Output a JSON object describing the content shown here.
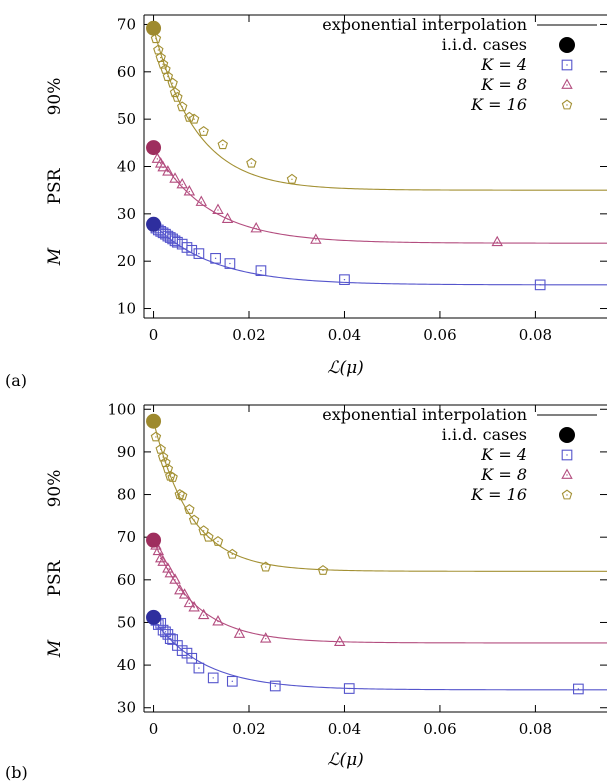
{
  "chart_data": [
    {
      "panel_label": "(a)",
      "type": "scatter",
      "xlabel": "ℒ(μ)",
      "ylabel": [
        "M",
        "PSR",
        "90%"
      ],
      "xlim": [
        -0.002,
        0.095
      ],
      "ylim": [
        8,
        72
      ],
      "xticks": [
        "0",
        "0.02",
        "0.04",
        "0.06",
        "0.08"
      ],
      "xtick_values": [
        0,
        0.02,
        0.04,
        0.06,
        0.08
      ],
      "yticks": [
        "10",
        "20",
        "30",
        "40",
        "50",
        "60",
        "70"
      ],
      "ytick_values": [
        10,
        20,
        30,
        40,
        50,
        60,
        70
      ],
      "legend": {
        "placement": "top-right",
        "entries": [
          "exponential interpolation",
          "i.i.d. cases",
          "K = 4",
          "K = 8",
          "K = 16"
        ]
      },
      "grid": false,
      "iid_points": [
        {
          "x": 0,
          "y": 27.8,
          "color": "#2e2e9e"
        },
        {
          "x": 0,
          "y": 44.0,
          "color": "#9e2e5e"
        },
        {
          "x": 0,
          "y": 69.2,
          "color": "#9e8a2e"
        }
      ],
      "series": [
        {
          "name": "K = 4",
          "marker": "square",
          "color": "#5555cc",
          "points": [
            [
              0.0005,
              27.0
            ],
            [
              0.001,
              26.6
            ],
            [
              0.0015,
              26.3
            ],
            [
              0.002,
              26.0
            ],
            [
              0.0025,
              25.7
            ],
            [
              0.003,
              25.3
            ],
            [
              0.0035,
              25.0
            ],
            [
              0.004,
              24.7
            ],
            [
              0.0045,
              24.3
            ],
            [
              0.005,
              24.0
            ],
            [
              0.006,
              23.6
            ],
            [
              0.007,
              22.9
            ],
            [
              0.008,
              22.3
            ],
            [
              0.0095,
              21.6
            ],
            [
              0.013,
              20.6
            ],
            [
              0.016,
              19.5
            ],
            [
              0.0225,
              18.0
            ],
            [
              0.04,
              16.1
            ],
            [
              0.081,
              15.0
            ]
          ],
          "fit": {
            "a": 15.0,
            "b": 12.8,
            "tau": 0.0125
          }
        },
        {
          "name": "K = 8",
          "marker": "triangle",
          "color": "#b34d7f",
          "points": [
            [
              0.0008,
              41.6
            ],
            [
              0.0015,
              40.6
            ],
            [
              0.002,
              39.8
            ],
            [
              0.003,
              38.9
            ],
            [
              0.0045,
              37.4
            ],
            [
              0.006,
              36.2
            ],
            [
              0.0075,
              34.7
            ],
            [
              0.01,
              32.5
            ],
            [
              0.0135,
              30.8
            ],
            [
              0.0155,
              28.9
            ],
            [
              0.0215,
              26.9
            ],
            [
              0.034,
              24.5
            ],
            [
              0.072,
              24.0
            ]
          ],
          "fit": {
            "a": 23.8,
            "b": 20.2,
            "tau": 0.0113
          }
        },
        {
          "name": "K = 16",
          "marker": "pentagon",
          "color": "#a39033",
          "points": [
            [
              0.0005,
              67.0
            ],
            [
              0.001,
              64.6
            ],
            [
              0.0015,
              63.0
            ],
            [
              0.002,
              61.6
            ],
            [
              0.0025,
              60.5
            ],
            [
              0.003,
              59.0
            ],
            [
              0.004,
              57.6
            ],
            [
              0.0045,
              55.6
            ],
            [
              0.005,
              54.6
            ],
            [
              0.006,
              52.6
            ],
            [
              0.0075,
              50.4
            ],
            [
              0.0085,
              50.0
            ],
            [
              0.0105,
              47.4
            ],
            [
              0.0145,
              44.6
            ],
            [
              0.0205,
              40.7
            ],
            [
              0.029,
              37.3
            ]
          ],
          "fit": {
            "a": 35.0,
            "b": 34.2,
            "tau": 0.0089
          }
        }
      ]
    },
    {
      "panel_label": "(b)",
      "type": "scatter",
      "xlabel": "ℒ(μ)",
      "ylabel": [
        "M",
        "PSR",
        "90%"
      ],
      "xlim": [
        -0.002,
        0.095
      ],
      "ylim": [
        29,
        101
      ],
      "xticks": [
        "0",
        "0.02",
        "0.04",
        "0.06",
        "0.08"
      ],
      "xtick_values": [
        0,
        0.02,
        0.04,
        0.06,
        0.08
      ],
      "yticks": [
        "30",
        "40",
        "50",
        "60",
        "70",
        "80",
        "90",
        "100"
      ],
      "ytick_values": [
        30,
        40,
        50,
        60,
        70,
        80,
        90,
        100
      ],
      "legend": {
        "placement": "top-right",
        "entries": [
          "exponential interpolation",
          "i.i.d. cases",
          "K = 4",
          "K = 8",
          "K = 16"
        ]
      },
      "grid": false,
      "iid_points": [
        {
          "x": 0,
          "y": 51.2,
          "color": "#2e2e9e"
        },
        {
          "x": 0,
          "y": 69.3,
          "color": "#9e2e5e"
        },
        {
          "x": 0,
          "y": 97.2,
          "color": "#9e8a2e"
        }
      ],
      "series": [
        {
          "name": "K = 4",
          "marker": "square",
          "color": "#5555cc",
          "points": [
            [
              0.0005,
              50.5
            ],
            [
              0.001,
              49.5
            ],
            [
              0.0015,
              49.8
            ],
            [
              0.002,
              48.2
            ],
            [
              0.0025,
              47.8
            ],
            [
              0.003,
              47.2
            ],
            [
              0.0035,
              46.2
            ],
            [
              0.004,
              46.0
            ],
            [
              0.005,
              44.6
            ],
            [
              0.006,
              43.4
            ],
            [
              0.007,
              42.8
            ],
            [
              0.008,
              41.6
            ],
            [
              0.0095,
              39.3
            ],
            [
              0.0125,
              37.0
            ],
            [
              0.0165,
              36.2
            ],
            [
              0.0255,
              35.1
            ],
            [
              0.041,
              34.5
            ],
            [
              0.089,
              34.4
            ]
          ],
          "fit": {
            "a": 34.2,
            "b": 16.5,
            "tau": 0.0105
          }
        },
        {
          "name": "K = 8",
          "marker": "triangle",
          "color": "#b34d7f",
          "points": [
            [
              0.0005,
              68.0
            ],
            [
              0.001,
              66.7
            ],
            [
              0.0015,
              65.0
            ],
            [
              0.002,
              64.2
            ],
            [
              0.003,
              62.6
            ],
            [
              0.0035,
              61.5
            ],
            [
              0.0045,
              60.0
            ],
            [
              0.0055,
              57.5
            ],
            [
              0.0065,
              56.5
            ],
            [
              0.0075,
              54.5
            ],
            [
              0.0085,
              53.5
            ],
            [
              0.0105,
              51.7
            ],
            [
              0.0135,
              50.2
            ],
            [
              0.018,
              47.3
            ],
            [
              0.0235,
              46.2
            ],
            [
              0.039,
              45.4
            ]
          ],
          "fit": {
            "a": 45.2,
            "b": 24.1,
            "tau": 0.0088
          }
        },
        {
          "name": "K = 16",
          "marker": "pentagon",
          "color": "#a39033",
          "points": [
            [
              0.0005,
              93.5
            ],
            [
              0.0015,
              90.6
            ],
            [
              0.002,
              88.8
            ],
            [
              0.0025,
              87.5
            ],
            [
              0.003,
              86.0
            ],
            [
              0.0035,
              84.3
            ],
            [
              0.004,
              84.0
            ],
            [
              0.0055,
              80.0
            ],
            [
              0.006,
              79.7
            ],
            [
              0.0075,
              76.5
            ],
            [
              0.0085,
              74.0
            ],
            [
              0.0105,
              71.5
            ],
            [
              0.0115,
              70.0
            ],
            [
              0.0135,
              69.0
            ],
            [
              0.0165,
              66.0
            ],
            [
              0.0235,
              63.0
            ],
            [
              0.0355,
              62.2
            ]
          ],
          "fit": {
            "a": 62.0,
            "b": 35.2,
            "tau": 0.0078
          }
        }
      ]
    }
  ]
}
